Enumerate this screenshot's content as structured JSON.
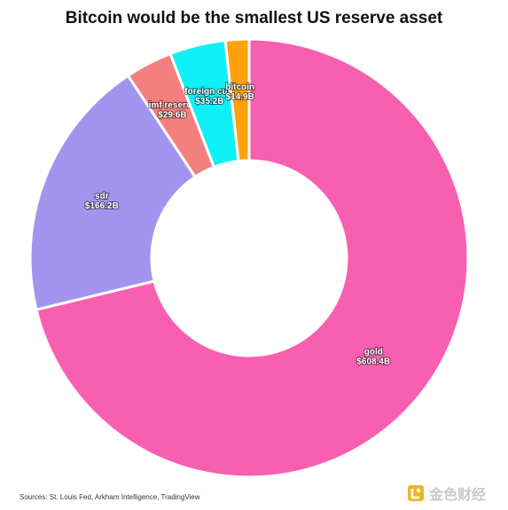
{
  "chart_data": {
    "type": "pie",
    "title": "Bitcoin would be the smallest US reserve asset",
    "donut": true,
    "slices": [
      {
        "name": "gold",
        "value": 608.4,
        "label": "$608.4B",
        "color": "#f95fb0"
      },
      {
        "name": "sdr",
        "value": 166.2,
        "label": "$166.2B",
        "color": "#a294ee"
      },
      {
        "name": "imf reserve",
        "value": 29.6,
        "label": "$29.6B",
        "color": "#f47f7e"
      },
      {
        "name": "foreign curr",
        "value": 35.2,
        "label": "$35.2B",
        "color": "#0ff0f6"
      },
      {
        "name": "bitcoin",
        "value": 14.9,
        "label": "$14.9B",
        "color": "#ffa10d"
      }
    ]
  },
  "source": "Sources: St. Louis Fed, Arkham Intelligence, TradingView",
  "watermark": "金色财经"
}
